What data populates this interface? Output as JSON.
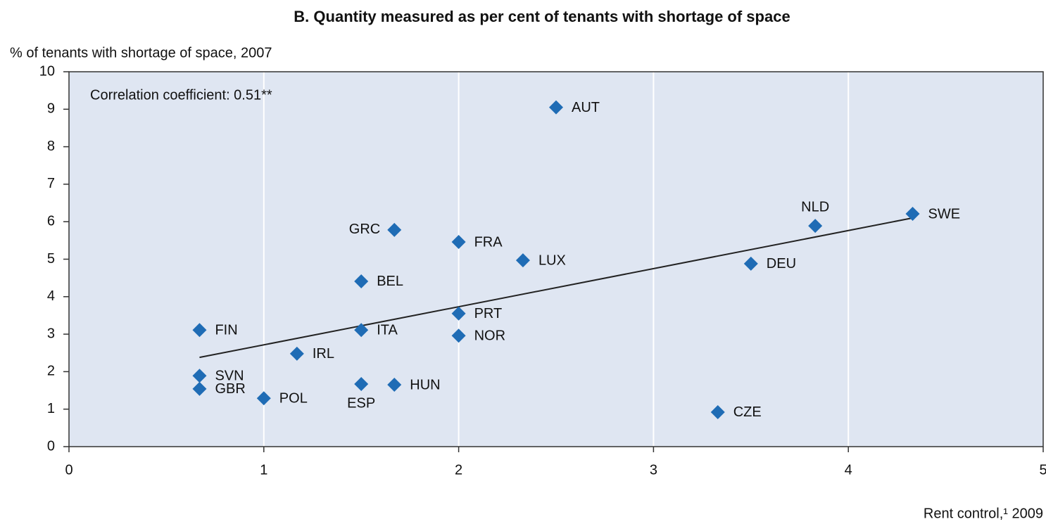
{
  "chart_data": {
    "type": "scatter",
    "title": "B.   Quantity measured as per cent of tenants with shortage of space",
    "y_label": "% of tenants with shortage of space, 2007",
    "x_label": "Rent control,¹ 2009",
    "annotation": "Correlation coefficient: 0.51**",
    "color": "#1f6cb5",
    "points": [
      {
        "label": "AUT",
        "x": 2.5,
        "y": 9.05
      },
      {
        "label": "SWE",
        "x": 4.33,
        "y": 6.21
      },
      {
        "label": "NLD",
        "x": 3.83,
        "y": 5.89
      },
      {
        "label": "DEU",
        "x": 3.5,
        "y": 4.88
      },
      {
        "label": "CZE",
        "x": 3.33,
        "y": 0.92
      },
      {
        "label": "GRC",
        "x": 1.67,
        "y": 5.78
      },
      {
        "label": "FRA",
        "x": 2.0,
        "y": 5.46
      },
      {
        "label": "LUX",
        "x": 2.33,
        "y": 4.97
      },
      {
        "label": "BEL",
        "x": 1.5,
        "y": 4.41
      },
      {
        "label": "PRT",
        "x": 2.0,
        "y": 3.55
      },
      {
        "label": "NOR",
        "x": 2.0,
        "y": 2.96
      },
      {
        "label": "ITA",
        "x": 1.5,
        "y": 3.11
      },
      {
        "label": "FIN",
        "x": 0.67,
        "y": 3.11
      },
      {
        "label": "IRL",
        "x": 1.17,
        "y": 2.48
      },
      {
        "label": "SVN",
        "x": 0.67,
        "y": 1.89
      },
      {
        "label": "GBR",
        "x": 0.67,
        "y": 1.54
      },
      {
        "label": "POL",
        "x": 1.0,
        "y": 1.29
      },
      {
        "label": "ESP",
        "x": 1.5,
        "y": 1.67
      },
      {
        "label": "HUN",
        "x": 1.67,
        "y": 1.65
      }
    ],
    "trendline": {
      "x": [
        0.67,
        4.33
      ],
      "y": [
        2.38,
        6.1
      ]
    },
    "xlim": [
      0,
      5
    ],
    "xticks": [
      0,
      1,
      2,
      3,
      4,
      5
    ],
    "ylim": [
      0,
      10
    ],
    "yticks": [
      0,
      1,
      2,
      3,
      4,
      5,
      6,
      7,
      8,
      9,
      10
    ],
    "grid": true
  }
}
